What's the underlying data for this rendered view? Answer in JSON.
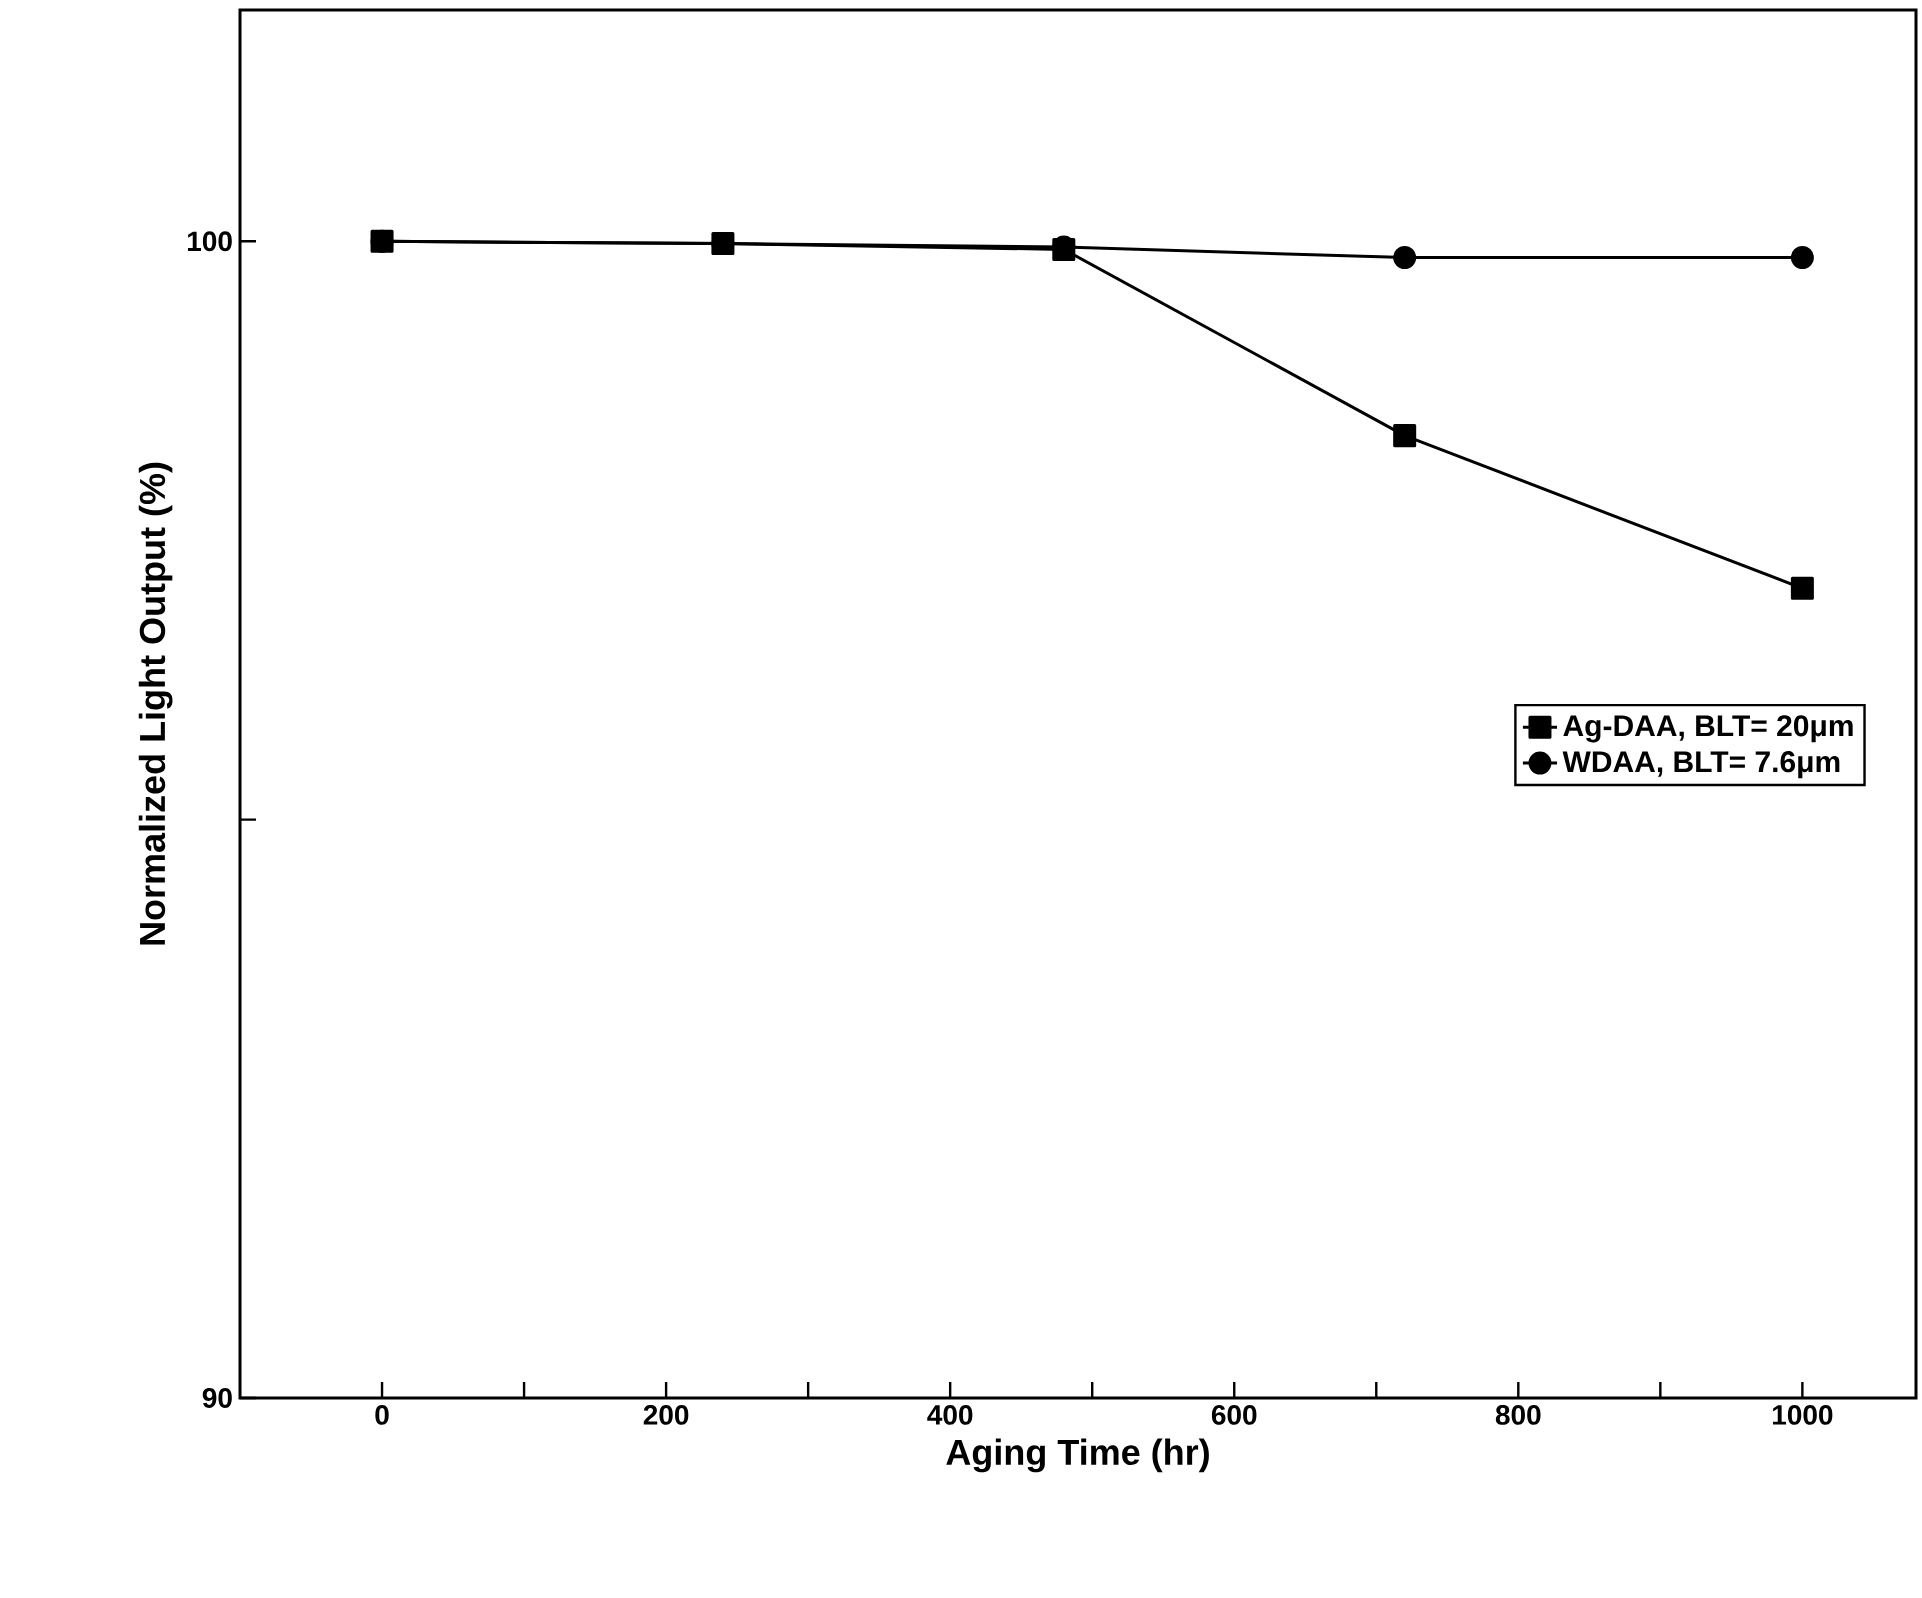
{
  "chart_data": {
    "type": "line",
    "xlabel": "Aging Time (hr)",
    "ylabel": "Normalized Light Output (%)",
    "x": [
      0,
      240,
      480,
      720,
      1000
    ],
    "series": [
      {
        "name": "Ag-DAA, BLT= 20μm",
        "color": "#000000",
        "marker": "square",
        "values": [
          100,
          99.98,
          99.93,
          98.32,
          97.0
        ]
      },
      {
        "name": "WDAA, BLT= 7.6μm",
        "color": "#000000",
        "marker": "circle",
        "values": [
          100,
          99.98,
          99.95,
          99.86,
          99.86
        ]
      }
    ],
    "xlim": [
      -100,
      1080
    ],
    "ylim": [
      90,
      102
    ],
    "xticks": [
      0,
      {
        "value": 100,
        "label": null
      },
      200,
      {
        "value": 300,
        "label": null
      },
      400,
      {
        "value": 500,
        "label": null
      },
      600,
      {
        "value": 700,
        "label": null
      },
      800,
      {
        "value": 900,
        "label": null
      },
      1000
    ],
    "yticks": [
      90,
      {
        "value": 95,
        "label": null
      },
      100
    ],
    "grid": false,
    "legend": "right",
    "line_style": "solid"
  }
}
